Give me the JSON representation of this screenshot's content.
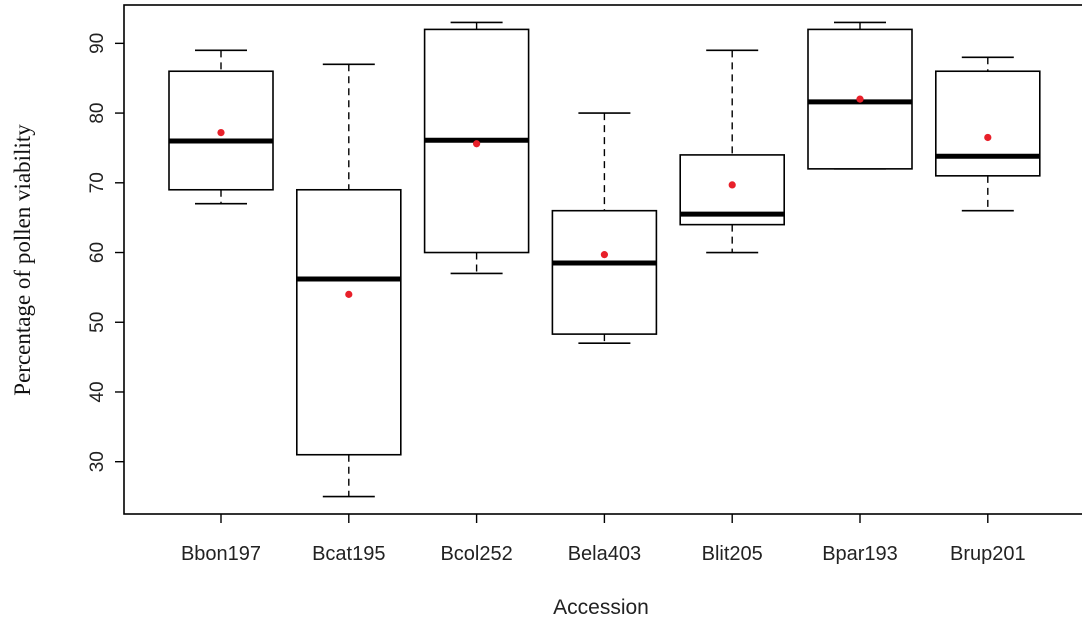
{
  "chart_data": {
    "type": "boxplot",
    "title": "",
    "xlabel": "Accession",
    "ylabel": "Percentage of pollen viability",
    "ylim": [
      22.5,
      95.5
    ],
    "yticks": [
      30,
      40,
      50,
      60,
      70,
      80,
      90
    ],
    "grid": false,
    "legend": "none",
    "colors": {
      "box": "#000000",
      "mean_marker": "#e8202a"
    },
    "categories": [
      "Bbon197",
      "Bcat195",
      "Bcol252",
      "Bela403",
      "Blit205",
      "Bpar193",
      "Brup201"
    ],
    "boxes": [
      {
        "name": "Bbon197",
        "whisker_low": 67,
        "q1": 69,
        "median": 76,
        "q3": 86,
        "whisker_high": 89,
        "mean": 77.2
      },
      {
        "name": "Bcat195",
        "whisker_low": 25,
        "q1": 31,
        "median": 56.2,
        "q3": 69,
        "whisker_high": 87,
        "mean": 54
      },
      {
        "name": "Bcol252",
        "whisker_low": 57,
        "q1": 60,
        "median": 76.1,
        "q3": 92,
        "whisker_high": 93,
        "mean": 75.6
      },
      {
        "name": "Bela403",
        "whisker_low": 47,
        "q1": 48.3,
        "median": 58.5,
        "q3": 66,
        "whisker_high": 80,
        "mean": 59.7
      },
      {
        "name": "Blit205",
        "whisker_low": 60,
        "q1": 64,
        "median": 65.5,
        "q3": 74,
        "whisker_high": 89,
        "mean": 69.7
      },
      {
        "name": "Bpar193",
        "whisker_low": 72,
        "q1": 72,
        "median": 81.6,
        "q3": 92,
        "whisker_high": 93,
        "mean": 82
      },
      {
        "name": "Brup201",
        "whisker_low": 66,
        "q1": 71,
        "median": 73.8,
        "q3": 86,
        "whisker_high": 88,
        "mean": 76.5
      }
    ]
  }
}
